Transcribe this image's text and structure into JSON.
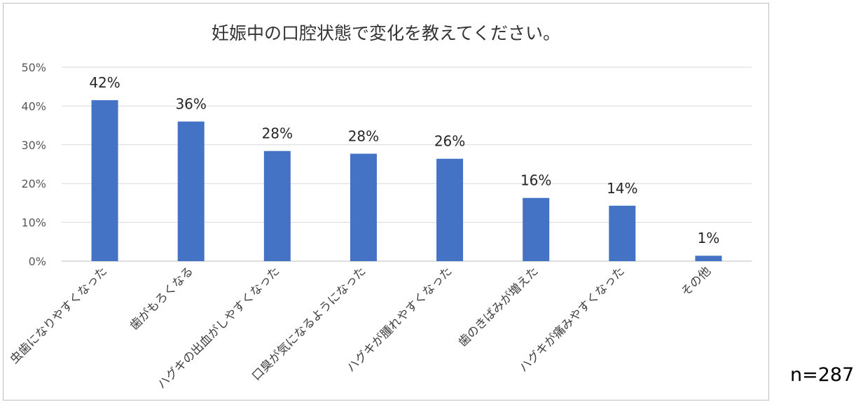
{
  "chart_data": {
    "type": "bar",
    "title": "妊娠中の口腔状態で変化を教えてください。",
    "categories": [
      "虫歯になりやすくなった",
      "歯がもろくなる",
      "ハグキの出血がしやすくなった",
      "口臭が気になるようになった",
      "ハグキが腫れやすくなった",
      "歯のきばみが増えた",
      "ハグキが痛みやすくなった",
      "その他"
    ],
    "values": [
      41.5,
      36,
      28.4,
      27.7,
      26.4,
      16.3,
      14.3,
      1.4
    ],
    "data_labels": [
      "42%",
      "36%",
      "28%",
      "28%",
      "26%",
      "16%",
      "14%",
      "1%"
    ],
    "yticks": [
      "0%",
      "10%",
      "20%",
      "30%",
      "40%",
      "50%"
    ],
    "ylim": [
      0,
      50
    ],
    "grid": true,
    "bar_color": "#4472c4",
    "grid_color": "#d9d9d9",
    "legend": "none"
  },
  "sample_size": "n=287"
}
